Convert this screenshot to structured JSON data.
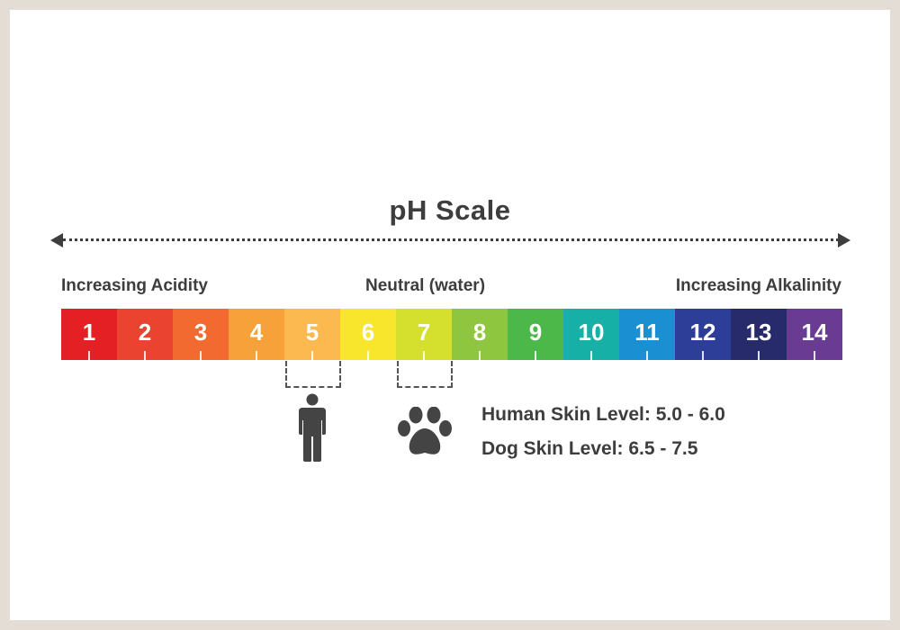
{
  "title": "pH Scale",
  "labels": {
    "acidity": "Increasing Acidity",
    "neutral": "Neutral (water)",
    "alkalinity": "Increasing Alkalinity"
  },
  "scale": [
    {
      "value": "1",
      "color": "#e52025"
    },
    {
      "value": "2",
      "color": "#ea4430"
    },
    {
      "value": "3",
      "color": "#f26a2f"
    },
    {
      "value": "4",
      "color": "#f7a13a"
    },
    {
      "value": "5",
      "color": "#fbb94f"
    },
    {
      "value": "6",
      "color": "#f7e62b"
    },
    {
      "value": "7",
      "color": "#d4df2e"
    },
    {
      "value": "8",
      "color": "#8ec63f"
    },
    {
      "value": "9",
      "color": "#4db84a"
    },
    {
      "value": "10",
      "color": "#17b0a6"
    },
    {
      "value": "11",
      "color": "#1a8fd1"
    },
    {
      "value": "12",
      "color": "#2c3e97"
    },
    {
      "value": "13",
      "color": "#272a6b"
    },
    {
      "value": "14",
      "color": "#6a3b93"
    }
  ],
  "legend": {
    "human": "Human Skin Level: 5.0 - 6.0",
    "dog": "Dog Skin Level: 6.5 - 7.5"
  },
  "icons": {
    "human": "person-icon",
    "dog": "paw-icon"
  },
  "ranges": {
    "human": [
      5.0,
      6.0
    ],
    "dog": [
      6.5,
      7.5
    ]
  }
}
